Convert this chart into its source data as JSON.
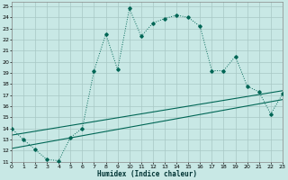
{
  "xlabel": "Humidex (Indice chaleur)",
  "background_color": "#c8e8e5",
  "grid_color": "#a8c8c5",
  "line_color": "#006655",
  "xlim": [
    0,
    23
  ],
  "ylim": [
    11,
    25.4
  ],
  "xticks": [
    0,
    1,
    2,
    3,
    4,
    5,
    6,
    7,
    8,
    9,
    10,
    11,
    12,
    13,
    14,
    15,
    16,
    17,
    18,
    19,
    20,
    21,
    22,
    23
  ],
  "yticks": [
    11,
    12,
    13,
    14,
    15,
    16,
    17,
    18,
    19,
    20,
    21,
    22,
    23,
    24,
    25
  ],
  "curve_x": [
    0,
    1,
    2,
    3,
    4,
    5,
    6,
    7,
    8,
    9,
    10,
    11,
    12,
    13,
    14,
    15,
    16,
    17,
    18,
    19,
    20,
    21,
    22,
    23
  ],
  "curve_y": [
    14.0,
    13.0,
    12.1,
    11.2,
    11.1,
    13.2,
    14.0,
    19.2,
    22.5,
    19.3,
    24.8,
    22.3,
    23.5,
    23.9,
    24.2,
    24.0,
    23.2,
    19.2,
    19.2,
    20.5,
    17.8,
    17.3,
    15.3,
    17.1
  ],
  "diag1_y0": 12.2,
  "diag1_y1": 16.6,
  "diag2_y0": 13.4,
  "diag2_y1": 17.4
}
